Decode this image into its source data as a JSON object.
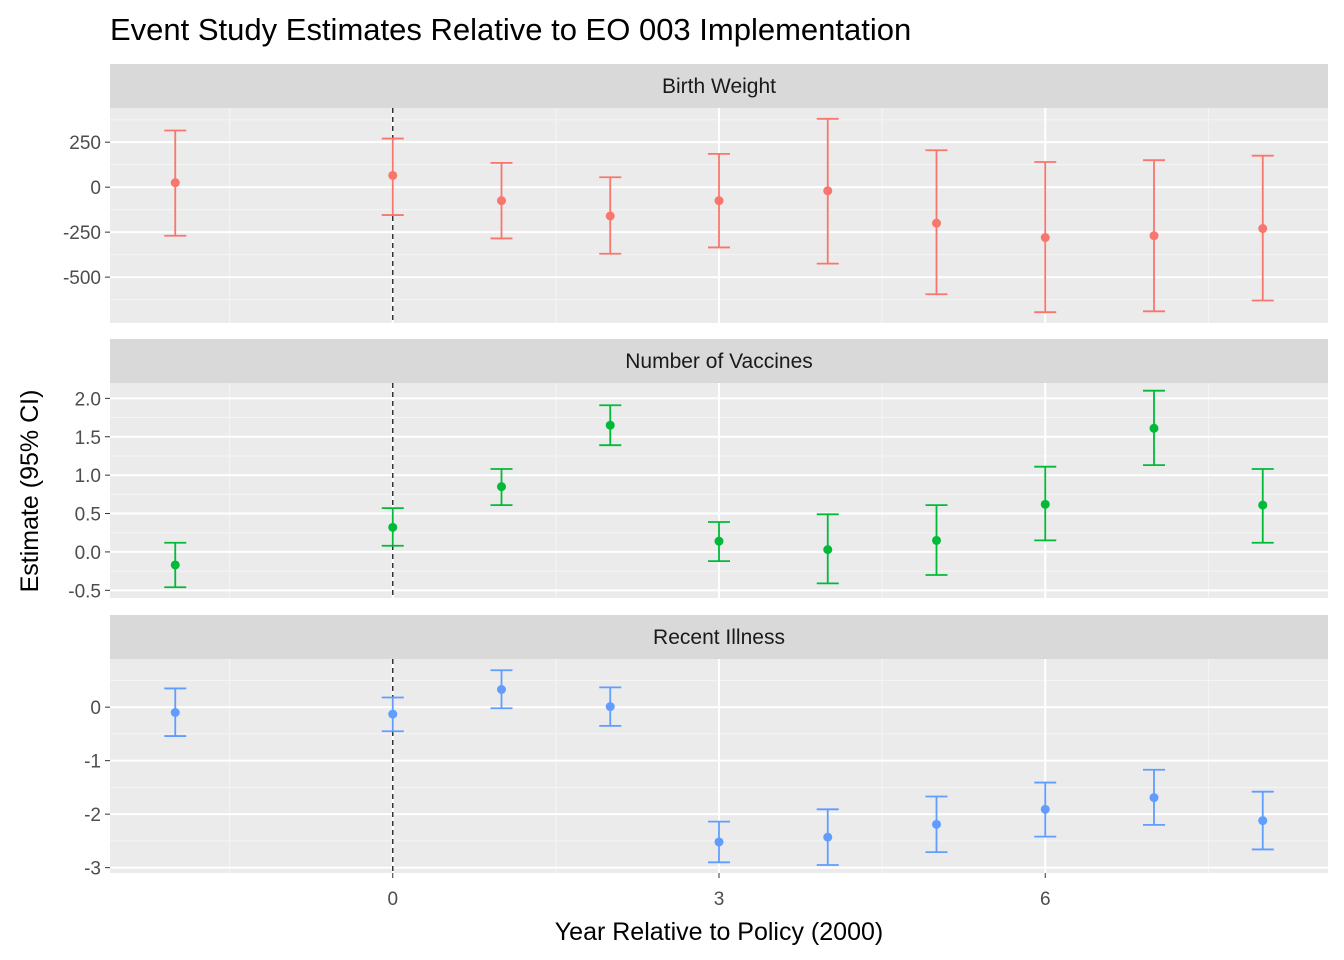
{
  "chart_data": {
    "type": "scatter",
    "title": "Event Study Estimates Relative to EO 003 Implementation",
    "xlabel": "Year Relative to Policy (2000)",
    "ylabel": "Estimate (95% CI)",
    "x_ticks": [
      0,
      3,
      6
    ],
    "xlim": [
      -2.6,
      8.6
    ],
    "reference_line_x": 0,
    "grid": true,
    "panels": [
      {
        "name": "Birth Weight",
        "color": "#F8766D",
        "ylim": [
          -755,
          440
        ],
        "y_ticks": [
          250,
          0,
          -250,
          -500
        ],
        "points": [
          {
            "x": -2,
            "estimate": 25,
            "lower": -270,
            "upper": 315
          },
          {
            "x": 0,
            "estimate": 65,
            "lower": -155,
            "upper": 270
          },
          {
            "x": 1,
            "estimate": -75,
            "lower": -285,
            "upper": 135
          },
          {
            "x": 2,
            "estimate": -160,
            "lower": -370,
            "upper": 55
          },
          {
            "x": 3,
            "estimate": -75,
            "lower": -335,
            "upper": 185
          },
          {
            "x": 4,
            "estimate": -20,
            "lower": -425,
            "upper": 380
          },
          {
            "x": 5,
            "estimate": -200,
            "lower": -595,
            "upper": 205
          },
          {
            "x": 6,
            "estimate": -280,
            "lower": -695,
            "upper": 140
          },
          {
            "x": 7,
            "estimate": -270,
            "lower": -690,
            "upper": 150
          },
          {
            "x": 8,
            "estimate": -230,
            "lower": -630,
            "upper": 175
          }
        ]
      },
      {
        "name": "Number of Vaccines",
        "color": "#00BA38",
        "ylim": [
          -0.6,
          2.2
        ],
        "y_ticks": [
          2.0,
          1.5,
          1.0,
          0.5,
          0.0,
          -0.5
        ],
        "y_tick_labels": [
          "2.0",
          "1.5",
          "1.0",
          "0.5",
          "0.0",
          "-0.5"
        ],
        "points": [
          {
            "x": -2,
            "estimate": -0.17,
            "lower": -0.46,
            "upper": 0.12
          },
          {
            "x": 0,
            "estimate": 0.32,
            "lower": 0.08,
            "upper": 0.57
          },
          {
            "x": 1,
            "estimate": 0.85,
            "lower": 0.61,
            "upper": 1.08
          },
          {
            "x": 2,
            "estimate": 1.65,
            "lower": 1.39,
            "upper": 1.91
          },
          {
            "x": 3,
            "estimate": 0.14,
            "lower": -0.12,
            "upper": 0.39
          },
          {
            "x": 4,
            "estimate": 0.03,
            "lower": -0.41,
            "upper": 0.49
          },
          {
            "x": 5,
            "estimate": 0.15,
            "lower": -0.3,
            "upper": 0.61
          },
          {
            "x": 6,
            "estimate": 0.62,
            "lower": 0.15,
            "upper": 1.11
          },
          {
            "x": 7,
            "estimate": 1.61,
            "lower": 1.13,
            "upper": 2.1
          },
          {
            "x": 8,
            "estimate": 0.61,
            "lower": 0.12,
            "upper": 1.08
          }
        ]
      },
      {
        "name": "Recent Illness",
        "color": "#619CFF",
        "ylim": [
          -3.1,
          0.9
        ],
        "y_ticks": [
          0,
          -1,
          -2,
          -3
        ],
        "points": [
          {
            "x": -2,
            "estimate": -0.1,
            "lower": -0.54,
            "upper": 0.35
          },
          {
            "x": 0,
            "estimate": -0.13,
            "lower": -0.45,
            "upper": 0.18
          },
          {
            "x": 1,
            "estimate": 0.33,
            "lower": -0.02,
            "upper": 0.69
          },
          {
            "x": 2,
            "estimate": 0.01,
            "lower": -0.35,
            "upper": 0.37
          },
          {
            "x": 3,
            "estimate": -2.52,
            "lower": -2.9,
            "upper": -2.14
          },
          {
            "x": 4,
            "estimate": -2.43,
            "lower": -2.95,
            "upper": -1.91
          },
          {
            "x": 5,
            "estimate": -2.19,
            "lower": -2.71,
            "upper": -1.67
          },
          {
            "x": 6,
            "estimate": -1.91,
            "lower": -2.42,
            "upper": -1.41
          },
          {
            "x": 7,
            "estimate": -1.69,
            "lower": -2.2,
            "upper": -1.17
          },
          {
            "x": 8,
            "estimate": -2.12,
            "lower": -2.66,
            "upper": -1.58
          }
        ]
      }
    ]
  }
}
